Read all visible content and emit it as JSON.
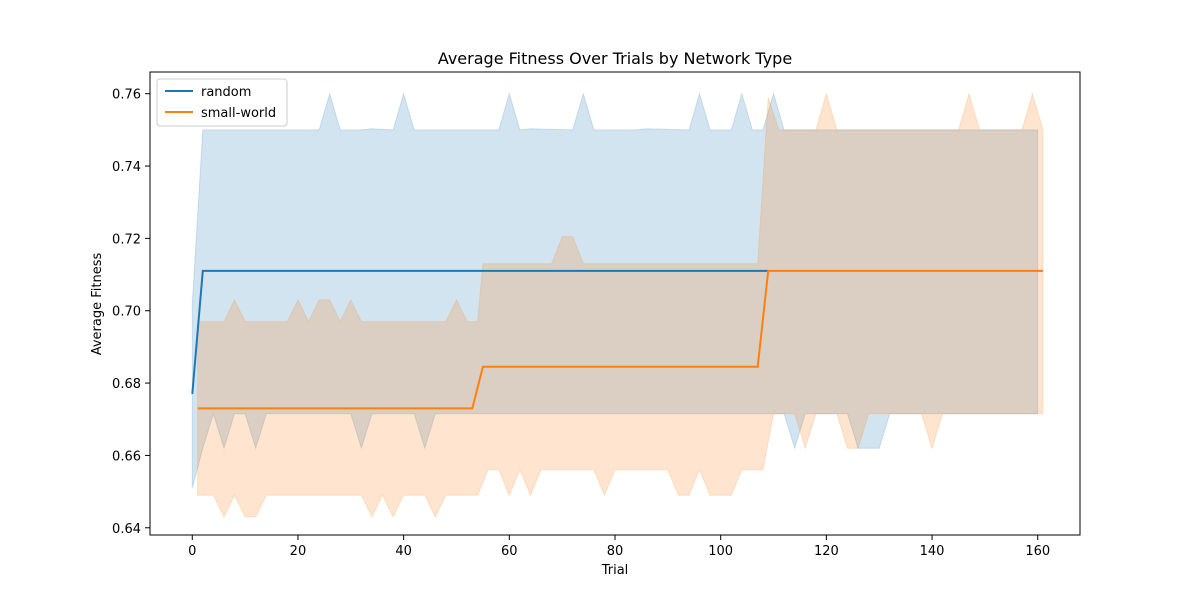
{
  "chart_data": {
    "type": "line",
    "title": "Average Fitness Over Trials by Network Type",
    "xlabel": "Trial",
    "ylabel": "Average Fitness",
    "xlim": [
      -8,
      168
    ],
    "ylim": [
      0.638,
      0.766
    ],
    "xticks": [
      0,
      20,
      40,
      60,
      80,
      100,
      120,
      140,
      160
    ],
    "yticks": [
      0.64,
      0.66,
      0.68,
      0.7,
      0.72,
      0.74,
      0.76
    ],
    "grid": false,
    "legend_position": "upper-left",
    "series": [
      {
        "name": "random",
        "color": "#1f77b4",
        "band_color": "#1f77b4",
        "line": [
          [
            0,
            0.677
          ],
          [
            2,
            0.711
          ],
          [
            109,
            0.711
          ]
        ],
        "band_upper": [
          [
            0,
            0.702
          ],
          [
            2,
            0.75
          ],
          [
            24,
            0.75
          ],
          [
            26,
            0.76
          ],
          [
            28,
            0.75
          ],
          [
            32,
            0.75
          ],
          [
            34,
            0.7503
          ],
          [
            38,
            0.75
          ],
          [
            40,
            0.76
          ],
          [
            42,
            0.75
          ],
          [
            58,
            0.75
          ],
          [
            60,
            0.76
          ],
          [
            62,
            0.75
          ],
          [
            64,
            0.7503
          ],
          [
            72,
            0.75
          ],
          [
            74,
            0.76
          ],
          [
            76,
            0.75
          ],
          [
            84,
            0.75
          ],
          [
            86,
            0.7503
          ],
          [
            94,
            0.75
          ],
          [
            96,
            0.76
          ],
          [
            98,
            0.75
          ],
          [
            102,
            0.75
          ],
          [
            104,
            0.76
          ],
          [
            106,
            0.75
          ],
          [
            108,
            0.75
          ],
          [
            110,
            0.76
          ],
          [
            112,
            0.75
          ],
          [
            160,
            0.75
          ]
        ],
        "band_lower": [
          [
            160,
            0.6715
          ],
          [
            132,
            0.6715
          ],
          [
            130,
            0.662
          ],
          [
            126,
            0.662
          ],
          [
            124,
            0.6715
          ],
          [
            116,
            0.6715
          ],
          [
            114,
            0.662
          ],
          [
            112,
            0.6715
          ],
          [
            108,
            0.6715
          ],
          [
            80,
            0.6715
          ],
          [
            68,
            0.6715
          ],
          [
            46,
            0.6715
          ],
          [
            44,
            0.662
          ],
          [
            42,
            0.6715
          ],
          [
            34,
            0.6715
          ],
          [
            32,
            0.662
          ],
          [
            30,
            0.6715
          ],
          [
            14,
            0.6715
          ],
          [
            12,
            0.662
          ],
          [
            10,
            0.6715
          ],
          [
            8,
            0.6715
          ],
          [
            6,
            0.662
          ],
          [
            4,
            0.6715
          ],
          [
            2,
            0.662
          ],
          [
            0,
            0.651
          ]
        ]
      },
      {
        "name": "small-world",
        "color": "#ff7f0e",
        "band_color": "#ff7f0e",
        "line": [
          [
            1,
            0.673
          ],
          [
            53,
            0.673
          ],
          [
            55,
            0.6845
          ],
          [
            107,
            0.6845
          ],
          [
            109,
            0.711
          ],
          [
            161,
            0.711
          ]
        ],
        "band_upper": [
          [
            1,
            0.697
          ],
          [
            6,
            0.697
          ],
          [
            8,
            0.703
          ],
          [
            10,
            0.697
          ],
          [
            18,
            0.697
          ],
          [
            20,
            0.703
          ],
          [
            22,
            0.697
          ],
          [
            24,
            0.703
          ],
          [
            26,
            0.703
          ],
          [
            28,
            0.697
          ],
          [
            30,
            0.703
          ],
          [
            32,
            0.697
          ],
          [
            48,
            0.697
          ],
          [
            50,
            0.703
          ],
          [
            52,
            0.697
          ],
          [
            54,
            0.697
          ],
          [
            55,
            0.713
          ],
          [
            68,
            0.713
          ],
          [
            70,
            0.7205
          ],
          [
            72,
            0.7205
          ],
          [
            74,
            0.713
          ],
          [
            106,
            0.713
          ],
          [
            107,
            0.713
          ],
          [
            109,
            0.759
          ],
          [
            111,
            0.75
          ],
          [
            118,
            0.75
          ],
          [
            120,
            0.76
          ],
          [
            122,
            0.75
          ],
          [
            145,
            0.75
          ],
          [
            147,
            0.76
          ],
          [
            149,
            0.75
          ],
          [
            157,
            0.75
          ],
          [
            159,
            0.76
          ],
          [
            161,
            0.75
          ]
        ],
        "band_lower": [
          [
            161,
            0.6715
          ],
          [
            150,
            0.6715
          ],
          [
            142,
            0.6715
          ],
          [
            140,
            0.662
          ],
          [
            138,
            0.6715
          ],
          [
            128,
            0.6715
          ],
          [
            126,
            0.662
          ],
          [
            124,
            0.662
          ],
          [
            122,
            0.6715
          ],
          [
            118,
            0.6715
          ],
          [
            116,
            0.662
          ],
          [
            114,
            0.6715
          ],
          [
            110,
            0.6715
          ],
          [
            108,
            0.656
          ],
          [
            104,
            0.656
          ],
          [
            102,
            0.649
          ],
          [
            98,
            0.649
          ],
          [
            96,
            0.656
          ],
          [
            94,
            0.649
          ],
          [
            92,
            0.649
          ],
          [
            90,
            0.656
          ],
          [
            80,
            0.656
          ],
          [
            78,
            0.649
          ],
          [
            76,
            0.656
          ],
          [
            66,
            0.656
          ],
          [
            64,
            0.649
          ],
          [
            62,
            0.656
          ],
          [
            60,
            0.649
          ],
          [
            58,
            0.656
          ],
          [
            56,
            0.656
          ],
          [
            54,
            0.649
          ],
          [
            48,
            0.649
          ],
          [
            46,
            0.643
          ],
          [
            44,
            0.649
          ],
          [
            40,
            0.649
          ],
          [
            38,
            0.643
          ],
          [
            36,
            0.649
          ],
          [
            34,
            0.643
          ],
          [
            32,
            0.649
          ],
          [
            14,
            0.649
          ],
          [
            12,
            0.643
          ],
          [
            10,
            0.643
          ],
          [
            8,
            0.649
          ],
          [
            6,
            0.643
          ],
          [
            4,
            0.649
          ],
          [
            1,
            0.649
          ]
        ]
      }
    ]
  }
}
